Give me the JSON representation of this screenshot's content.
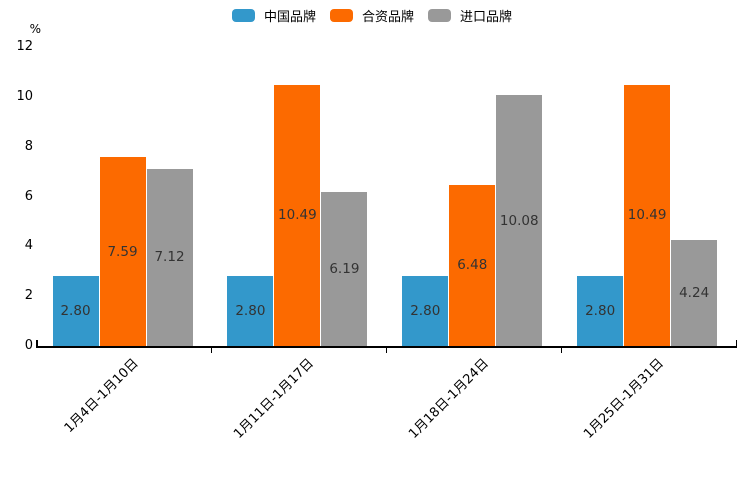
{
  "chart_data": {
    "type": "bar",
    "title": "",
    "ylabel": "%",
    "xlabel": "",
    "ylim": [
      0,
      12
    ],
    "yticks": [
      0,
      2,
      4,
      6,
      8,
      10,
      12
    ],
    "grid": false,
    "legend_position": "top",
    "value_label_decimals": 2,
    "value_label_color": "#333333",
    "axis_color": "#000000",
    "categories": [
      "1月4日-1月10日",
      "1月11日-1月17日",
      "1月18日-1月24日",
      "1月25日-1月31日"
    ],
    "series": [
      {
        "name": "中国品牌",
        "color": "#3398CB",
        "values": [
          2.8,
          2.8,
          2.8,
          2.8
        ]
      },
      {
        "name": "合资品牌",
        "color": "#FC6A00",
        "values": [
          7.59,
          10.49,
          6.48,
          10.49
        ]
      },
      {
        "name": "进口品牌",
        "color": "#999999",
        "values": [
          7.12,
          6.19,
          10.08,
          4.24
        ]
      }
    ]
  }
}
